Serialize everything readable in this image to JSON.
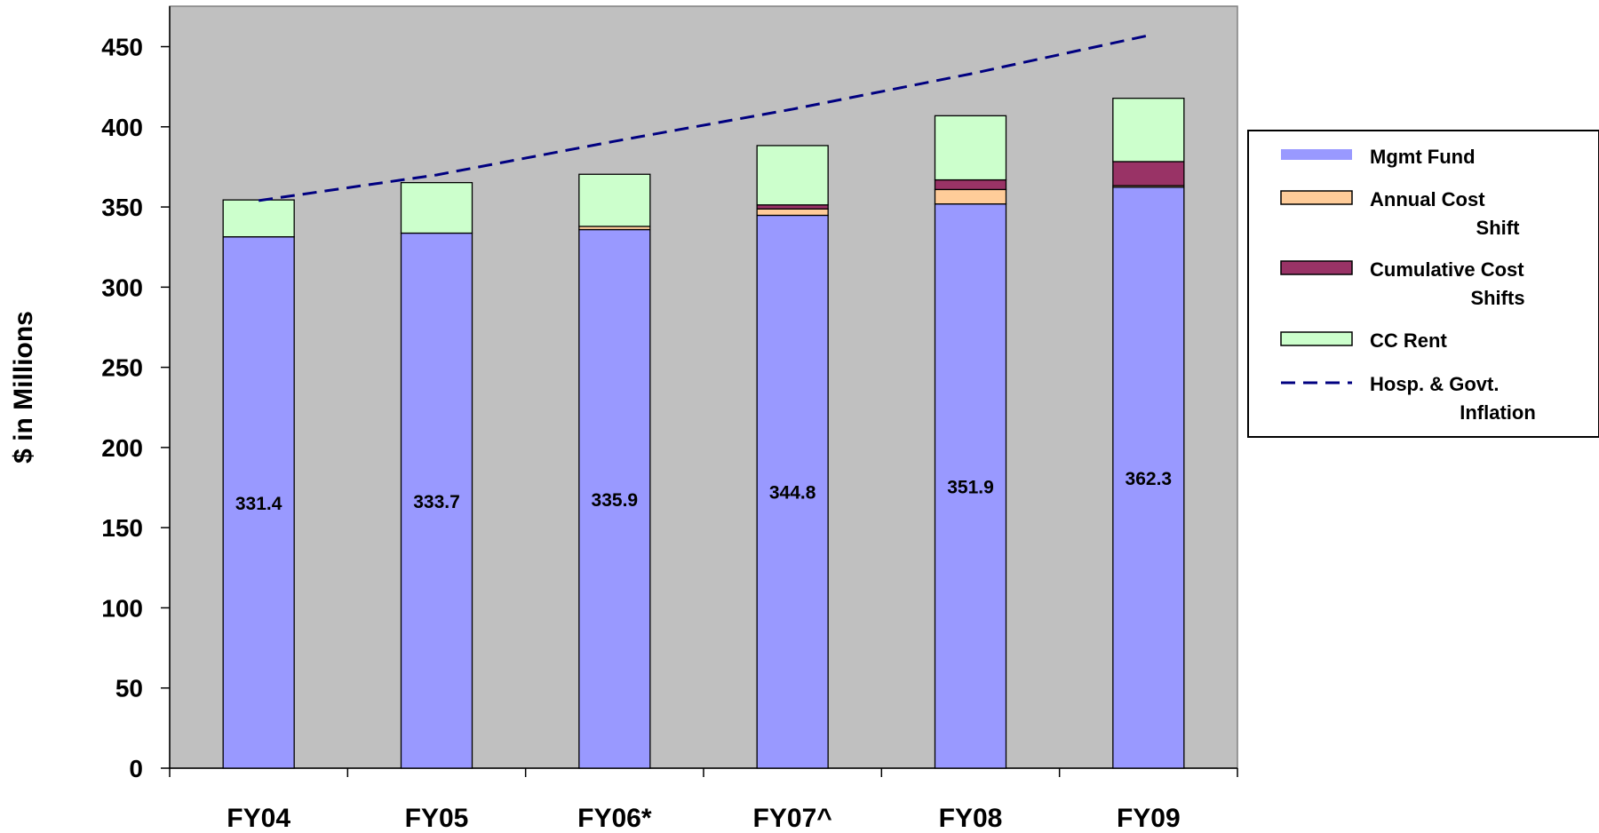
{
  "chart_data": {
    "type": "bar",
    "stacked": true,
    "ylabel": "$ in Millions",
    "ylim": [
      0,
      475
    ],
    "yticks": [
      0,
      50,
      100,
      150,
      200,
      250,
      300,
      350,
      400,
      450
    ],
    "categories": [
      "FY04",
      "FY05",
      "FY06*",
      "FY07^",
      "FY08",
      "FY09"
    ],
    "series": [
      {
        "name": "Mgmt Fund",
        "color": "#9999ff",
        "values": [
          331.4,
          333.7,
          335.9,
          344.8,
          351.9,
          362.3
        ],
        "labels": [
          "331.4",
          "333.7",
          "335.9",
          "344.8",
          "351.9",
          "362.3"
        ]
      },
      {
        "name": "Annual Cost Shift",
        "color": "#ffcc99",
        "values": [
          0,
          0,
          2,
          4,
          9,
          1
        ]
      },
      {
        "name": "Cumulative Cost Shifts",
        "color": "#993366",
        "values": [
          0,
          0,
          0,
          2.5,
          6,
          15
        ]
      },
      {
        "name": "CC Rent",
        "color": "#ccffcc",
        "values": [
          23,
          31.5,
          32.5,
          37,
          40,
          39.5
        ]
      }
    ],
    "line": {
      "name": "Hosp. & Govt. Inflation",
      "color": "#000080",
      "style": "dashed",
      "values": [
        354,
        370,
        391,
        411,
        433,
        457
      ]
    },
    "legend": {
      "position": "right",
      "items": [
        {
          "lines": [
            "Mgmt Fund"
          ],
          "swatch": "thin-bar",
          "color": "#9999ff"
        },
        {
          "lines": [
            "Annual Cost",
            "Shift"
          ],
          "swatch": "box",
          "color": "#ffcc99"
        },
        {
          "lines": [
            "Cumulative Cost",
            "Shifts"
          ],
          "swatch": "box",
          "color": "#993366"
        },
        {
          "lines": [
            "CC Rent"
          ],
          "swatch": "box",
          "color": "#ccffcc"
        },
        {
          "lines": [
            "Hosp. & Govt.",
            "Inflation"
          ],
          "swatch": "dash",
          "color": "#000080"
        }
      ]
    },
    "plot_background": "#c0c0c0",
    "grid": false
  }
}
